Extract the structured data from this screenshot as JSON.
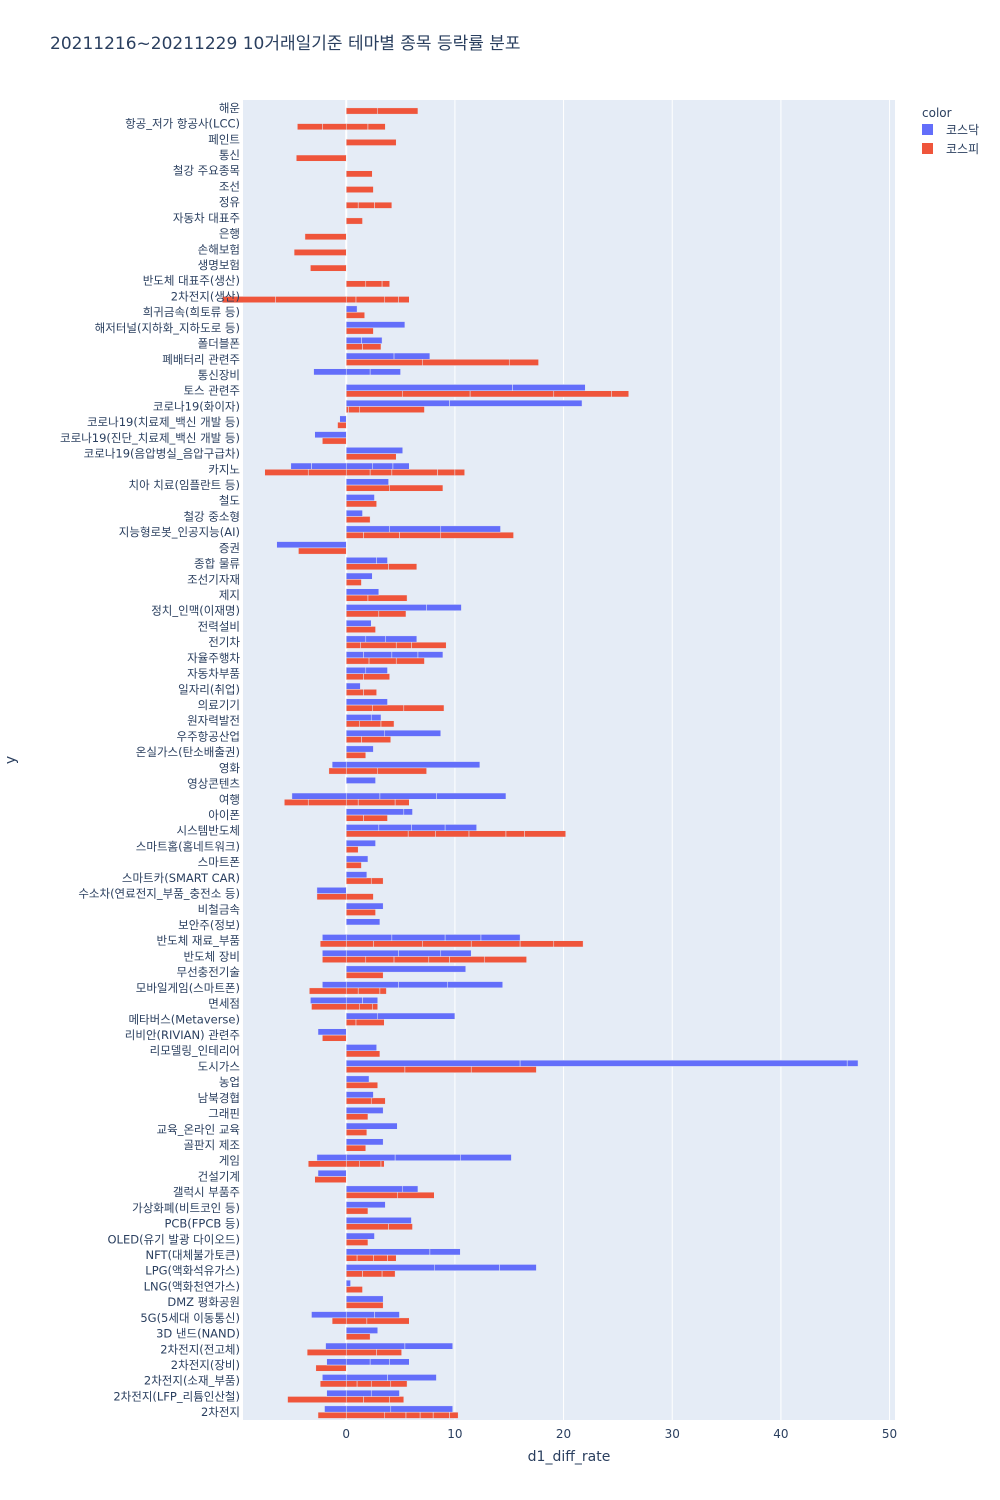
{
  "chart_data": {
    "type": "bar",
    "orientation": "horizontal",
    "barmode": "relative",
    "title": "20211216~20211229 10거래일기준 테마별 종목 등락률 분포",
    "xlabel": "d1_diff_rate",
    "ylabel": "y",
    "xlim": [
      -9.5,
      50.5
    ],
    "xticks": [
      0,
      10,
      20,
      30,
      40,
      50
    ],
    "grid": true,
    "legend": {
      "title": "color",
      "position": "top-right"
    },
    "series_colors": {
      "코스닥": "#636efa",
      "코스피": "#ef553b"
    },
    "legend_items": [
      {
        "name": "코스닥",
        "color": "#636efa"
      },
      {
        "name": "코스피",
        "color": "#ef553b"
      }
    ],
    "categories": [
      "해운",
      "항공_저가 항공사(LCC)",
      "페인트",
      "통신",
      "철강 주요종목",
      "조선",
      "정유",
      "자동차 대표주",
      "은행",
      "손해보험",
      "생명보험",
      "반도체 대표주(생산)",
      "2차전지(생산)",
      "희귀금속(희토류 등)",
      "해저터널(지하화_지하도로 등)",
      "폴더블폰",
      "폐배터리 관련주",
      "통신장비",
      "토스 관련주",
      "코로나19(화이자)",
      "코로나19(치료제_백신 개발 등)",
      "코로나19(진단_치료제_백신 개발 등)",
      "코로나19(음압병실_음압구급차)",
      "카지노",
      "치아 치료(임플란트 등)",
      "철도",
      "철강 중소형",
      "지능형로봇_인공지능(AI)",
      "증권",
      "종합 물류",
      "조선기자재",
      "제지",
      "정치_인맥(이재명)",
      "전력설비",
      "전기차",
      "자율주행차",
      "자동차부품",
      "일자리(취업)",
      "의료기기",
      "원자력발전",
      "우주항공산업",
      "온실가스(탄소배출권)",
      "영화",
      "영상콘텐츠",
      "여행",
      "아이폰",
      "시스템반도체",
      "스마트홈(홈네트워크)",
      "스마트폰",
      "스마트카(SMART CAR)",
      "수소차(연료전지_부품_충전소 등)",
      "비철금속",
      "보안주(정보)",
      "반도체 재료_부품",
      "반도체 장비",
      "무선충전기술",
      "모바일게임(스마트폰)",
      "면세점",
      "메타버스(Metaverse)",
      "리비안(RIVIAN) 관련주",
      "리모델링_인테리어",
      "도시가스",
      "농업",
      "남북경협",
      "그래핀",
      "교육_온라인 교육",
      "골판지 제조",
      "게임",
      "건설기계",
      "갤럭시 부품주",
      "가상화폐(비트코인 등)",
      "PCB(FPCB 등)",
      "OLED(유기 발광 다이오드)",
      "NFT(대체불가토큰)",
      "LPG(액화석유가스)",
      "LNG(액화천연가스)",
      "DMZ 평화공원",
      "5G(5세대 이동통신)",
      "3D 낸드(NAND)",
      "2차전지(전고체)",
      "2차전지(장비)",
      "2차전지(소재_부품)",
      "2차전지(LFP_리튬인산철)",
      "2차전지"
    ],
    "series": [
      {
        "name": "코스피",
        "stocks": [
          [
            2.9,
            3.7
          ],
          [
            -2.2,
            -2.3,
            2.0,
            1.6
          ],
          [
            4.6
          ],
          [
            -4.6
          ],
          [
            2.4
          ],
          [
            2.5
          ],
          [
            1.1,
            1.5,
            1.6
          ],
          [
            1.5
          ],
          [
            -3.8
          ],
          [
            -4.8
          ],
          [
            -3.3
          ],
          [
            1.8,
            1.5,
            0.7
          ],
          [
            -6.5,
            -4.9,
            0.9,
            2.6,
            1.3,
            1.0
          ],
          [
            1.7
          ],
          [
            2.5
          ],
          [
            1.5,
            1.7
          ],
          [
            7.0,
            8.0,
            2.7
          ],
          [],
          [
            5.2,
            6.2,
            7.7,
            5.3,
            1.6
          ],
          [
            0.2,
            1.0,
            6.0
          ],
          [
            -0.8
          ],
          [
            -2.2
          ],
          [
            4.6
          ],
          [
            -3.5,
            -4.0,
            2.2,
            2.0,
            4.2,
            1.6,
            0.9
          ],
          [
            4.0,
            4.9
          ],
          [
            2.8
          ],
          [
            2.2
          ],
          [
            1.6,
            3.3,
            3.8,
            6.7
          ],
          [
            -4.4
          ],
          [
            3.9,
            2.6
          ],
          [
            1.4
          ],
          [
            2.0,
            3.6
          ],
          [
            3.0,
            2.5
          ],
          [
            2.7
          ],
          [
            1.3,
            3.3,
            1.4,
            3.2
          ],
          [
            2.1,
            2.5,
            2.6
          ],
          [
            1.6,
            2.4
          ],
          [
            1.6,
            1.2
          ],
          [
            2.4,
            2.9,
            3.7
          ],
          [
            1.2,
            2.0,
            1.2
          ],
          [
            1.4,
            2.7
          ],
          [
            1.8
          ],
          [
            -1.6,
            2.9,
            4.5
          ],
          [],
          [
            -3.5,
            -2.2,
            1.1,
            3.4,
            1.3
          ],
          [
            1.6,
            2.2
          ],
          [
            5.7,
            2.5,
            3.1,
            3.4,
            1.7,
            3.8
          ],
          [
            1.1
          ],
          [
            1.4
          ],
          [
            2.3,
            1.1
          ],
          [
            -2.7,
            2.5
          ],
          [
            2.7
          ],
          [],
          [
            -2.4,
            2.5,
            4.5,
            4.5,
            4.5,
            3.1,
            2.7
          ],
          [
            -2.2,
            1.8,
            2.6,
            3.2,
            1.9,
            3.2,
            3.9
          ],
          [
            3.4
          ],
          [
            -3.4,
            1.1,
            2.0,
            0.6
          ],
          [
            -3.2,
            1.2,
            1.2,
            0.5
          ],
          [
            0.9,
            2.6
          ],
          [
            -2.2
          ],
          [
            3.1
          ],
          [
            5.4,
            6.1,
            6.0
          ],
          [
            2.9
          ],
          [
            2.3,
            1.3
          ],
          [
            2.0
          ],
          [
            1.9
          ],
          [
            1.8
          ],
          [
            -3.5,
            1.2,
            2.0,
            0.3
          ],
          [
            -2.9
          ],
          [
            4.7,
            3.4
          ],
          [
            2.0
          ],
          [
            3.9,
            2.2
          ],
          [
            2.0
          ],
          [
            1.0,
            1.5,
            1.3,
            0.8
          ],
          [
            1.5,
            1.8,
            1.2
          ],
          [
            1.5
          ],
          [
            3.4
          ],
          [
            -1.3,
            1.9,
            3.9
          ],
          [
            2.2
          ],
          [
            -3.6,
            2.8,
            2.3
          ],
          [
            -2.8
          ],
          [
            -2.4,
            1.0,
            1.3,
            1.8,
            1.5
          ],
          [
            -5.4,
            1.6,
            2.4,
            1.3
          ],
          [
            -2.6,
            3.5,
            2.0,
            1.3,
            1.2,
            1.5,
            0.8
          ]
        ]
      },
      {
        "name": "코스닥",
        "stocks": [
          [],
          [],
          [],
          [],
          [],
          [],
          [],
          [],
          [],
          [],
          [],
          [],
          [],
          [
            1.0
          ],
          [
            5.4
          ],
          [
            1.4,
            1.9
          ],
          [
            4.4,
            3.3
          ],
          [
            -3.0,
            2.2,
            2.8
          ],
          [
            15.3,
            6.7
          ],
          [
            9.5,
            12.2
          ],
          [
            -0.6
          ],
          [
            -2.9
          ],
          [
            5.2
          ],
          [
            -3.2,
            -1.9,
            2.4,
            1.9,
            1.5
          ],
          [
            3.9
          ],
          [
            2.6
          ],
          [
            1.5
          ],
          [
            4.0,
            4.7,
            5.5
          ],
          [
            -6.4
          ],
          [
            2.8,
            1.0
          ],
          [
            2.4
          ],
          [
            3.0
          ],
          [
            7.4,
            3.2
          ],
          [
            2.3
          ],
          [
            1.8,
            1.8,
            2.9
          ],
          [
            1.6,
            2.6,
            2.4,
            2.3
          ],
          [
            1.8,
            2.0
          ],
          [
            1.3
          ],
          [
            3.8
          ],
          [
            2.3,
            0.9
          ],
          [
            3.5,
            5.2
          ],
          [
            2.5
          ],
          [
            -1.3,
            12.3
          ],
          [
            2.7
          ],
          [
            -5.0,
            3.1,
            5.2,
            6.4
          ],
          [
            5.3,
            0.8
          ],
          [
            3.0,
            3.0,
            3.1,
            2.9
          ],
          [
            2.7
          ],
          [
            2.0
          ],
          [
            1.9
          ],
          [
            -2.7
          ],
          [
            3.4
          ],
          [
            3.1
          ],
          [
            -2.2,
            4.2,
            4.9,
            3.3,
            3.6
          ],
          [
            -2.2,
            4.8,
            3.9,
            2.8
          ],
          [
            11.0
          ],
          [
            -2.2,
            4.8,
            4.5,
            5.1
          ],
          [
            -3.3,
            1.5,
            1.4
          ],
          [
            2.9,
            7.1
          ],
          [
            -2.6
          ],
          [
            2.8
          ],
          [
            16.0,
            30.1,
            1.0
          ],
          [
            2.1
          ],
          [
            2.5
          ],
          [
            3.4
          ],
          [
            4.7
          ],
          [
            3.4
          ],
          [
            -2.7,
            4.5,
            6.0,
            4.7
          ],
          [
            -2.6
          ],
          [
            5.2,
            1.4
          ],
          [
            3.6
          ],
          [
            6.0
          ],
          [
            2.6
          ],
          [
            7.7,
            2.8
          ],
          [
            8.1,
            6.0,
            3.4
          ],
          [
            0.4
          ],
          [
            3.4
          ],
          [
            -3.2,
            2.6,
            2.3
          ],
          [
            2.9
          ],
          [
            -1.9,
            5.4,
            4.4
          ],
          [
            -1.8,
            2.2,
            1.8,
            1.8
          ],
          [
            -2.2,
            3.8,
            4.5
          ],
          [
            -1.8,
            2.3,
            2.6
          ],
          [
            -2.0,
            4.1,
            5.7
          ]
        ]
      }
    ]
  }
}
